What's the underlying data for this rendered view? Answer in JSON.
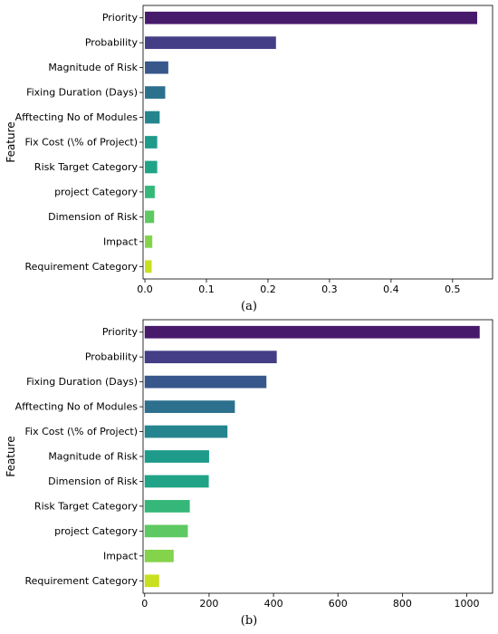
{
  "chart_data": [
    {
      "type": "bar",
      "orientation": "horizontal",
      "panel_label": "(a)",
      "ylabel": "Feature",
      "xlabel": "",
      "xlim": [
        -0.003,
        0.565
      ],
      "xticks": [
        "0.0",
        "0.1",
        "0.2",
        "0.3",
        "0.4",
        "0.5"
      ],
      "xtick_values": [
        0.0,
        0.1,
        0.2,
        0.3,
        0.4,
        0.5
      ],
      "categories": [
        "Priority",
        "Probability",
        "Magnitude of Risk",
        "Fixing Duration (Days)",
        "Afftecting No of Modules",
        "Fix Cost (\\% of Project)",
        "Risk Target Category",
        "project Category",
        "Dimension of Risk",
        "Impact",
        "Requirement Category"
      ],
      "values": [
        0.54,
        0.213,
        0.038,
        0.033,
        0.024,
        0.02,
        0.02,
        0.016,
        0.015,
        0.012,
        0.011
      ],
      "colors": [
        "#481a6c",
        "#433e85",
        "#38588c",
        "#2d708e",
        "#25858e",
        "#1e9b8a",
        "#20a386",
        "#35b779",
        "#5ec962",
        "#84d44b",
        "#c8e020"
      ]
    },
    {
      "type": "bar",
      "orientation": "horizontal",
      "panel_label": "(b)",
      "ylabel": "Feature",
      "xlabel": "",
      "xlim": [
        -5,
        1080
      ],
      "xticks": [
        "0",
        "200",
        "400",
        "600",
        "800",
        "1000"
      ],
      "xtick_values": [
        0,
        200,
        400,
        600,
        800,
        1000
      ],
      "categories": [
        "Priority",
        "Probability",
        "Fixing Duration (Days)",
        "Afftecting No of Modules",
        "Fix Cost (\\% of Project)",
        "Magnitude of Risk",
        "Dimension of Risk",
        "Risk Target Category",
        "project Category",
        "Impact",
        "Requirement Category"
      ],
      "values": [
        1040,
        410,
        378,
        280,
        257,
        200,
        199,
        140,
        134,
        90,
        45
      ],
      "colors": [
        "#481a6c",
        "#433e85",
        "#38588c",
        "#2d708e",
        "#25858e",
        "#1e9b8a",
        "#20a386",
        "#35b779",
        "#5ec962",
        "#84d44b",
        "#c8e020"
      ]
    }
  ]
}
